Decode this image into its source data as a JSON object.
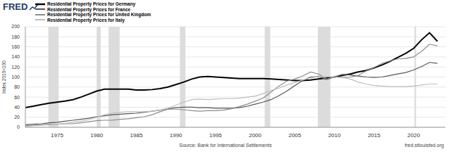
{
  "chart_data": {
    "type": "line",
    "logo": "FRED",
    "y_label": "Index 2010=100",
    "source": "Source: Bank for International Settlements",
    "site": "fred.stlouisfed.org",
    "legend": "top-left",
    "grid": true,
    "x": [
      1971,
      1972,
      1973,
      1974,
      1975,
      1976,
      1977,
      1978,
      1979,
      1980,
      1981,
      1982,
      1983,
      1984,
      1985,
      1986,
      1987,
      1988,
      1989,
      1990,
      1991,
      1992,
      1993,
      1994,
      1995,
      1996,
      1997,
      1998,
      1999,
      2000,
      2001,
      2002,
      2003,
      2004,
      2005,
      2006,
      2007,
      2008,
      2009,
      2010,
      2011,
      2012,
      2013,
      2014,
      2015,
      2016,
      2017,
      2018,
      2019,
      2020,
      2021,
      2022,
      2023
    ],
    "xlim": [
      1971,
      2024
    ],
    "xticks": [
      1975,
      1980,
      1985,
      1990,
      1995,
      2000,
      2005,
      2010,
      2015,
      2020
    ],
    "ylim": [
      0,
      200
    ],
    "yticks": [
      0,
      20,
      40,
      60,
      80,
      100,
      120,
      140,
      160,
      180,
      200
    ],
    "recessions": [
      [
        1973.9,
        1975.2
      ],
      [
        1980.0,
        1980.5
      ],
      [
        1981.5,
        1982.9
      ],
      [
        1990.5,
        1991.2
      ],
      [
        2001.2,
        2001.9
      ],
      [
        2007.9,
        2009.5
      ],
      [
        2020.1,
        2020.3
      ]
    ],
    "series": [
      {
        "name": "Residential Property Prices for Germany",
        "color": "#000000",
        "values": [
          39,
          42,
          45,
          48,
          50,
          52,
          55,
          60,
          66,
          72,
          76,
          76,
          76,
          76,
          74,
          74,
          75,
          77,
          80,
          85,
          90,
          96,
          100,
          101,
          100,
          99,
          98,
          97,
          97,
          97,
          97,
          96,
          95,
          94,
          93,
          93,
          94,
          96,
          98,
          100,
          103,
          106,
          110,
          113,
          118,
          124,
          131,
          139,
          147,
          157,
          174,
          188,
          171
        ]
      },
      {
        "name": "Residential Property Prices for France",
        "color": "#555555",
        "values": [
          5,
          6,
          7,
          9,
          10,
          12,
          14,
          16,
          18,
          21,
          23,
          25,
          26,
          27,
          28,
          30,
          32,
          34,
          37,
          39,
          40,
          40,
          39,
          39,
          38,
          38,
          38,
          39,
          42,
          46,
          50,
          55,
          63,
          72,
          83,
          93,
          100,
          101,
          95,
          100,
          105,
          104,
          102,
          100,
          99,
          100,
          103,
          106,
          109,
          114,
          121,
          129,
          127
        ]
      },
      {
        "name": "Residential Property Prices for United Kingdom",
        "color": "#8c8c8c",
        "values": [
          3,
          4,
          5,
          6,
          6,
          7,
          7,
          9,
          11,
          13,
          14,
          14,
          16,
          17,
          19,
          21,
          25,
          31,
          36,
          36,
          35,
          33,
          32,
          33,
          33,
          34,
          37,
          41,
          46,
          52,
          58,
          70,
          82,
          92,
          96,
          102,
          110,
          106,
          96,
          100,
          99,
          100,
          103,
          112,
          119,
          127,
          132,
          136,
          137,
          140,
          151,
          165,
          162
        ]
      },
      {
        "name": "Residential Property Prices for Italy",
        "color": "#bdbdbd",
        "values": [
          2,
          3,
          4,
          5,
          6,
          8,
          10,
          12,
          15,
          20,
          25,
          28,
          30,
          31,
          31,
          31,
          32,
          34,
          38,
          44,
          50,
          55,
          56,
          55,
          56,
          57,
          57,
          58,
          60,
          62,
          67,
          73,
          78,
          84,
          89,
          94,
          98,
          101,
          101,
          100,
          99,
          96,
          90,
          86,
          83,
          82,
          81,
          81,
          81,
          82,
          84,
          86,
          86
        ]
      }
    ]
  }
}
